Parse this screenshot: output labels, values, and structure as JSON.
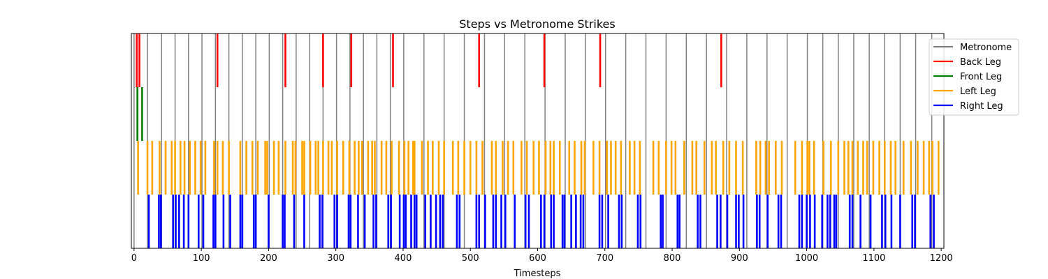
{
  "chart_data": {
    "type": "event-raster",
    "title": "Steps vs Metronome Strikes",
    "xlabel": "Timesteps",
    "ylabel": "",
    "xlim": [
      -4,
      1204
    ],
    "xticks": [
      0,
      100,
      200,
      300,
      400,
      500,
      600,
      700,
      800,
      900,
      1000,
      1100,
      1200
    ],
    "grid": false,
    "legend_position": "top-right, outside",
    "series": [
      {
        "name": "Metronome",
        "color": "#808080",
        "band": [
          0,
          1
        ],
        "events": [
          0,
          20,
          41,
          61,
          81,
          101,
          121,
          141,
          161,
          181,
          201,
          221,
          241,
          261,
          281,
          301,
          321,
          341,
          361,
          381,
          401,
          431,
          461,
          491,
          521,
          551,
          581,
          611,
          641,
          671,
          701,
          731,
          761,
          791,
          821,
          851,
          881,
          911,
          941,
          971,
          1001,
          1024,
          1047,
          1070,
          1093,
          1116,
          1139,
          1162,
          1186
        ]
      },
      {
        "name": "Back Leg",
        "color": "#ff0000",
        "band": [
          0.75,
          1
        ],
        "events": [
          4,
          8,
          124,
          225,
          281,
          323,
          385,
          513,
          610,
          693,
          873
        ]
      },
      {
        "name": "Front Leg",
        "color": "#008000",
        "band": [
          0.5,
          0.75
        ],
        "events": [
          5,
          12
        ]
      },
      {
        "name": "Left Leg",
        "color": "#ffa500",
        "band": [
          0.25,
          0.5
        ],
        "events": [
          6,
          20,
          27,
          38,
          47,
          56,
          61,
          69,
          75,
          83,
          91,
          99,
          106,
          119,
          124,
          132,
          141,
          158,
          167,
          176,
          184,
          195,
          198,
          208,
          215,
          225,
          236,
          240,
          250,
          253,
          262,
          270,
          274,
          281,
          289,
          294,
          302,
          311,
          320,
          328,
          334,
          339,
          348,
          354,
          358,
          368,
          375,
          383,
          394,
          402,
          408,
          415,
          417,
          428,
          437,
          444,
          453,
          461,
          474,
          482,
          491,
          500,
          509,
          518,
          532,
          538,
          548,
          556,
          564,
          576,
          584,
          594,
          602,
          612,
          619,
          624,
          633,
          647,
          655,
          665,
          670,
          683,
          692,
          703,
          709,
          716,
          724,
          737,
          744,
          752,
          772,
          780,
          791,
          799,
          805,
          818,
          830,
          836,
          848,
          859,
          865,
          876,
          885,
          895,
          905,
          925,
          931,
          939,
          944,
          954,
          963,
          983,
          993,
          1001,
          1004,
          1011,
          1025,
          1036,
          1047,
          1056,
          1062,
          1068,
          1076,
          1084,
          1090,
          1099,
          1108,
          1116,
          1125,
          1132,
          1144,
          1155,
          1165,
          1174,
          1182,
          1187,
          1196
        ]
      },
      {
        "name": "Right Leg",
        "color": "#0000ff",
        "band": [
          0,
          0.25
        ],
        "events": [
          22,
          37,
          40,
          58,
          62,
          67,
          74,
          81,
          96,
          103,
          118,
          121,
          133,
          143,
          158,
          161,
          178,
          181,
          200,
          221,
          224,
          238,
          253,
          276,
          280,
          298,
          302,
          319,
          322,
          333,
          343,
          356,
          360,
          378,
          382,
          395,
          401,
          404,
          412,
          417,
          420,
          433,
          441,
          449,
          455,
          459,
          480,
          484,
          509,
          513,
          522,
          534,
          538,
          546,
          552,
          566,
          582,
          587,
          605,
          610,
          620,
          624,
          637,
          640,
          650,
          657,
          664,
          668,
          692,
          696,
          705,
          721,
          725,
          749,
          753,
          783,
          786,
          808,
          811,
          838,
          842,
          867,
          872,
          882,
          895,
          899,
          906,
          926,
          930,
          942,
          958,
          962,
          989,
          993,
          1000,
          1005,
          1012,
          1023,
          1031,
          1035,
          1041,
          1044,
          1064,
          1068,
          1080,
          1095,
          1112,
          1117,
          1126,
          1139,
          1157,
          1161,
          1184,
          1189
        ]
      }
    ]
  }
}
